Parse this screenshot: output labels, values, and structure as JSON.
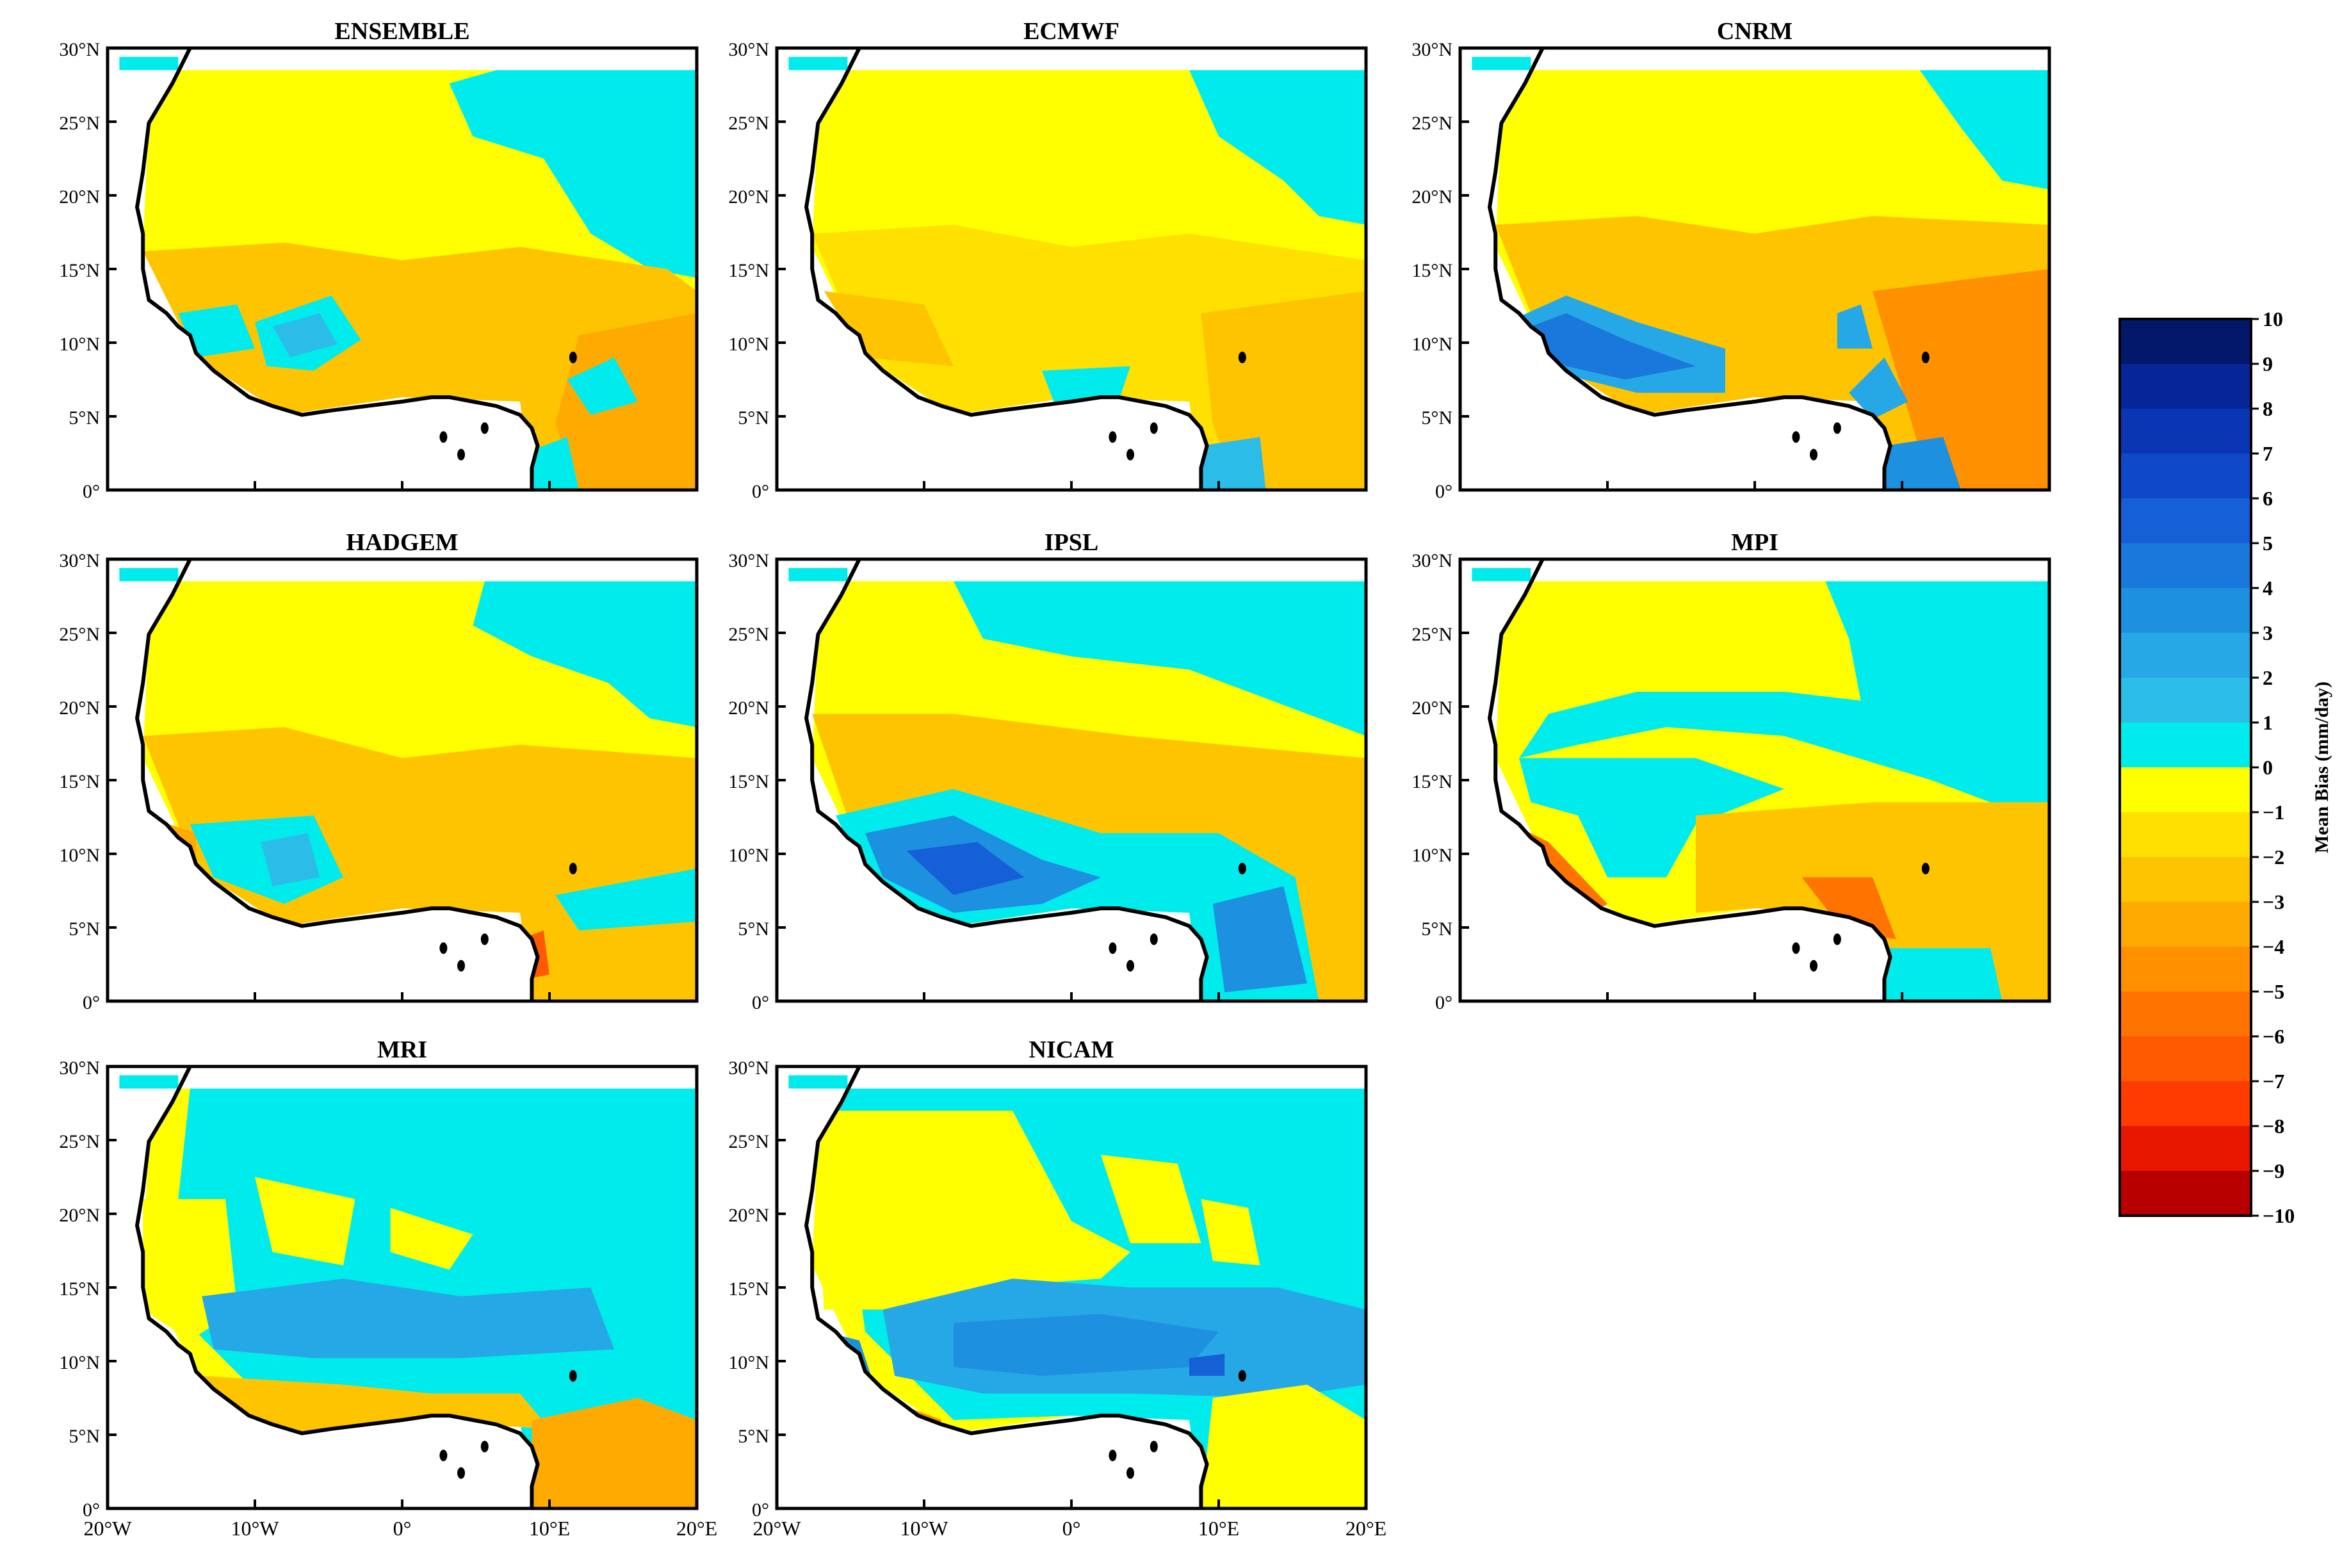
{
  "figure": {
    "panels": [
      {
        "title": "ENSEMBLE",
        "variant": "ensemble"
      },
      {
        "title": "ECMWF",
        "variant": "ecmwf"
      },
      {
        "title": "CNRM",
        "variant": "cnrm"
      },
      {
        "title": "HADGEM",
        "variant": "hadgem"
      },
      {
        "title": "IPSL",
        "variant": "ipsl"
      },
      {
        "title": "MPI",
        "variant": "mpi"
      },
      {
        "title": "MRI",
        "variant": "mri"
      },
      {
        "title": "NICAM",
        "variant": "nicam"
      }
    ],
    "lat_ticks": [
      "0°",
      "5°N",
      "10°N",
      "15°N",
      "20°N",
      "25°N",
      "30°N"
    ],
    "lon_ticks": [
      "20°W",
      "10°W",
      "0°",
      "10°E",
      "20°E"
    ],
    "colorbar": {
      "label": "Mean Bias (mm/day)",
      "ticks": [
        "10",
        "9",
        "8",
        "7",
        "6",
        "5",
        "4",
        "3",
        "2",
        "1",
        "0",
        "−1",
        "−2",
        "−3",
        "−4",
        "−5",
        "−6",
        "−7",
        "−8",
        "−9",
        "−10"
      ]
    },
    "colors": {
      "pos": [
        "#00ecec",
        "#2bbde8",
        "#27a8e6",
        "#1e90e0",
        "#1a78dc",
        "#1560d6",
        "#0f48c8",
        "#0a36b4",
        "#062698",
        "#03186a"
      ],
      "neg": [
        "#ffff00",
        "#ffe000",
        "#ffc400",
        "#ffaa00",
        "#ff9000",
        "#ff7400",
        "#ff5a00",
        "#ff3c00",
        "#e81800",
        "#b80000"
      ]
    }
  }
}
